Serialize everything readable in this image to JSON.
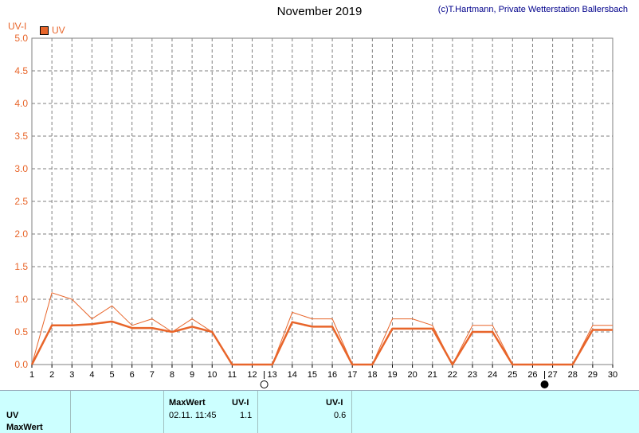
{
  "header": {
    "title": "November 2019",
    "credit": "(c)T.Hartmann, Private Wetterstation Ballersbach",
    "unit": "UV-I",
    "legend_label": "UV"
  },
  "colors": {
    "series": "#e8652a",
    "grid": "#7f7f7f",
    "axis_text": "#e8652a",
    "panel_bg": "#ccffff"
  },
  "chart_data": {
    "type": "line",
    "title": "November 2019",
    "ylabel": "UV-I",
    "xlim": [
      1,
      30
    ],
    "ylim": [
      0,
      5
    ],
    "x_ticks": [
      "1",
      "2",
      "3",
      "4",
      "5",
      "6",
      "7",
      "8",
      "9",
      "10",
      "11",
      "12",
      "13",
      "14",
      "15",
      "16",
      "17",
      "18",
      "19",
      "20",
      "21",
      "22",
      "23",
      "24",
      "25",
      "26",
      "27",
      "28",
      "29",
      "30"
    ],
    "y_ticks": [
      "0.0",
      "0.5",
      "1.0",
      "1.5",
      "2.0",
      "2.5",
      "3.0",
      "3.5",
      "4.0",
      "4.5",
      "5.0"
    ],
    "grid": true,
    "legend": "top-left",
    "moon_markers": [
      {
        "day": 12.6,
        "phase": "full-moon"
      },
      {
        "day": 26.6,
        "phase": "new-moon"
      }
    ],
    "series": [
      {
        "name": "UV",
        "style": "max",
        "x": [
          1,
          2,
          3,
          4,
          5,
          6,
          7,
          8,
          9,
          10,
          11,
          12,
          13,
          14,
          15,
          16,
          17,
          18,
          19,
          20,
          21,
          22,
          23,
          24,
          25,
          26,
          27,
          28,
          29,
          30
        ],
        "values": [
          0,
          1.1,
          1.0,
          0.7,
          0.9,
          0.6,
          0.7,
          0.5,
          0.7,
          0.5,
          0,
          0,
          0,
          0.8,
          0.7,
          0.7,
          0,
          0,
          0.7,
          0.7,
          0.6,
          0,
          0.6,
          0.6,
          0,
          0,
          0,
          0,
          0.6,
          0.6
        ]
      },
      {
        "style": "mean",
        "x": [
          1,
          2,
          3,
          4,
          5,
          6,
          7,
          8,
          9,
          10,
          11,
          12,
          13,
          14,
          15,
          16,
          17,
          18,
          19,
          20,
          21,
          22,
          23,
          24,
          25,
          26,
          27,
          28,
          29,
          30
        ],
        "values": [
          0,
          0.6,
          0.6,
          0.62,
          0.66,
          0.56,
          0.56,
          0.5,
          0.58,
          0.5,
          0,
          0,
          0,
          0.65,
          0.58,
          0.58,
          0,
          0,
          0.55,
          0.55,
          0.55,
          0,
          0.5,
          0.5,
          0,
          0,
          0,
          0,
          0.53,
          0.53
        ]
      }
    ]
  },
  "panel": {
    "row_label": "UV",
    "row_label_2": "MaxWert",
    "col_maxwert_header": "MaxWert",
    "col_uvi_header": "UV-I",
    "max_datetime": "02.11.  11:45",
    "max_value": "1.1",
    "col2_uvi_header": "UV-I",
    "mean_value": "0.6"
  }
}
